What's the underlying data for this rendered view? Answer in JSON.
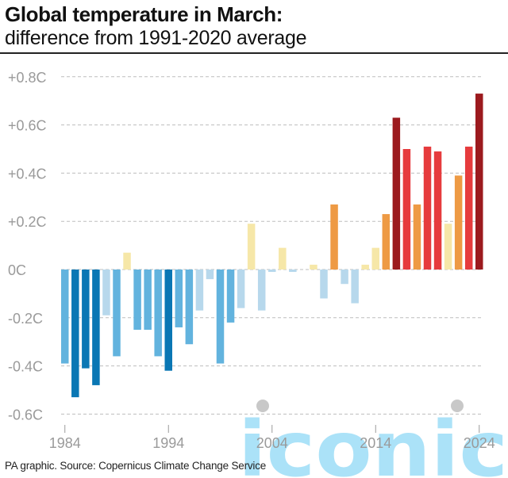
{
  "title": "Global temperature in March:",
  "subtitle": "difference from 1991-2020 average",
  "footer": "PA graphic. Source: Copernicus Climate Change Service",
  "watermark": "iconic",
  "colors": {
    "dark_blue": "#0a77b4",
    "mid_blue": "#62b3de",
    "light_blue": "#b7d8ec",
    "pale_yellow": "#f6e7a8",
    "orange": "#ee9a44",
    "red": "#e63b3d",
    "dark_red": "#9c1a1e",
    "grid": "#bdbdbd",
    "axis_text": "#9a9a9a",
    "watermark": "#8fd8f5"
  },
  "chart_data": {
    "type": "bar",
    "title": "Global temperature in March:",
    "subtitle": "difference from 1991-2020 average",
    "xlabel": "",
    "ylabel": "",
    "ylim": [
      -0.6,
      0.8
    ],
    "yticks": [
      -0.6,
      -0.4,
      -0.2,
      0,
      0.2,
      0.4,
      0.6,
      0.8
    ],
    "ytick_labels": [
      "-0.6C",
      "-0.4C",
      "-0.2C",
      "0C",
      "+0.2C",
      "+0.4C",
      "+0.6C",
      "+0.8C"
    ],
    "xtick_labels": [
      "1984",
      "1994",
      "2004",
      "2014",
      "2024"
    ],
    "grid": true,
    "categories": [
      1984,
      1985,
      1986,
      1987,
      1988,
      1989,
      1990,
      1991,
      1992,
      1993,
      1994,
      1995,
      1996,
      1997,
      1998,
      1999,
      2000,
      2001,
      2002,
      2003,
      2004,
      2005,
      2006,
      2007,
      2008,
      2009,
      2010,
      2011,
      2012,
      2013,
      2014,
      2015,
      2016,
      2017,
      2018,
      2019,
      2020,
      2021,
      2022,
      2023,
      2024
    ],
    "values": [
      -0.39,
      -0.53,
      -0.41,
      -0.48,
      -0.19,
      -0.36,
      0.07,
      -0.25,
      -0.25,
      -0.36,
      -0.42,
      -0.24,
      -0.31,
      -0.17,
      -0.04,
      -0.39,
      -0.22,
      -0.16,
      0.19,
      -0.17,
      -0.01,
      0.09,
      -0.01,
      0.0,
      0.02,
      -0.12,
      0.27,
      -0.06,
      -0.14,
      0.02,
      0.09,
      0.23,
      0.63,
      0.5,
      0.27,
      0.51,
      0.49,
      0.19,
      0.39,
      0.51,
      0.73
    ]
  }
}
